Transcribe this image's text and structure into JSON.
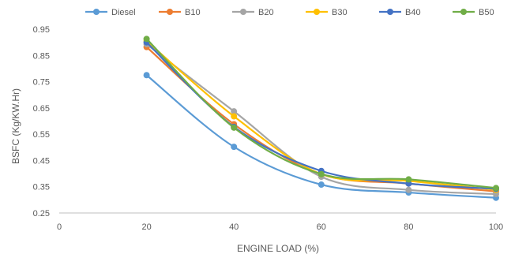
{
  "chart_data": {
    "type": "line",
    "title": "",
    "xlabel": "ENGINE LOAD (%)",
    "ylabel": "BSFC (Kg/KW.Hr)",
    "xlim": [
      0,
      100
    ],
    "ylim": [
      0.25,
      0.95
    ],
    "x_ticks": [
      "0",
      "20",
      "40",
      "60",
      "80",
      "100"
    ],
    "y_ticks": [
      "0.25",
      "0.35",
      "0.45",
      "0.55",
      "0.65",
      "0.75",
      "0.85",
      "0.95"
    ],
    "grid": false,
    "legend_position": "top",
    "x": [
      20,
      40,
      60,
      80,
      100
    ],
    "series": [
      {
        "name": "Diesel",
        "color": "#5B9BD5",
        "values": [
          0.775,
          0.502,
          0.358,
          0.328,
          0.308
        ]
      },
      {
        "name": "B10",
        "color": "#ED7D31",
        "values": [
          0.882,
          0.588,
          0.398,
          0.362,
          0.332
        ]
      },
      {
        "name": "B20",
        "color": "#A5A5A5",
        "values": [
          0.893,
          0.637,
          0.388,
          0.338,
          0.322
        ]
      },
      {
        "name": "B30",
        "color": "#FFC000",
        "values": [
          0.905,
          0.618,
          0.398,
          0.372,
          0.338
        ]
      },
      {
        "name": "B40",
        "color": "#4472C4",
        "values": [
          0.9,
          0.578,
          0.41,
          0.362,
          0.342
        ]
      },
      {
        "name": "B50",
        "color": "#70AD47",
        "values": [
          0.913,
          0.575,
          0.398,
          0.378,
          0.345
        ]
      }
    ]
  }
}
